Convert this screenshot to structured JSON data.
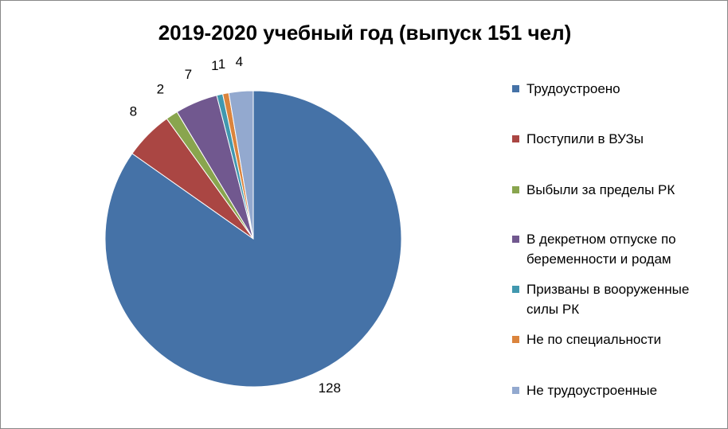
{
  "chart_data": {
    "type": "pie",
    "title": "2019-2020 учебный год (выпуск 151 чел)",
    "categories": [
      "Трудоустроено",
      "Поступили в ВУЗы",
      "Выбыли за пределы РК",
      "В декретном отпуске по беременности и родам",
      "Призваны в вооруженные силы РК",
      "Не по специальности",
      "Не трудоустроенные"
    ],
    "values": [
      128,
      8,
      2,
      7,
      1,
      1,
      4
    ],
    "colors": [
      "#4572a7",
      "#aa4643",
      "#89a54e",
      "#71588f",
      "#4198af",
      "#db843d",
      "#93a9cf"
    ],
    "legend": "right"
  }
}
